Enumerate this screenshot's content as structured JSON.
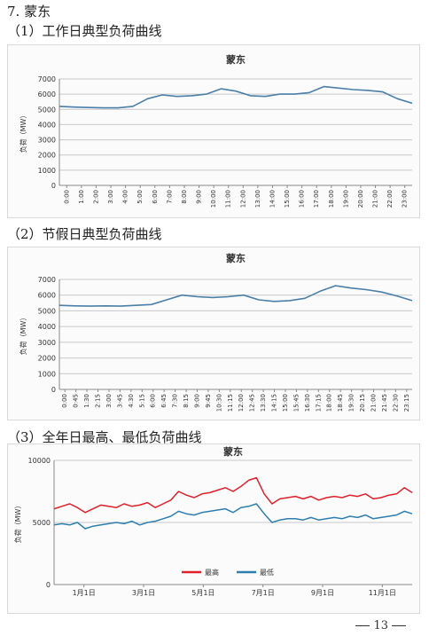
{
  "section": {
    "title": "7. 蒙东"
  },
  "subsections": [
    {
      "label": "（1）工作日典型负荷曲线"
    },
    {
      "label": "（2）节假日典型负荷曲线"
    },
    {
      "label": "（3）全年日最高、最低负荷曲线"
    }
  ],
  "page_number": "13",
  "chart_data": [
    {
      "type": "line",
      "title": "蒙东",
      "ylabel": "负荷（MW）",
      "ylim": [
        0,
        7000
      ],
      "yticks": [
        0,
        1000,
        2000,
        3000,
        4000,
        5000,
        6000,
        7000
      ],
      "grid": true,
      "x_labels": [
        "0:00",
        "1:00",
        "2:00",
        "3:00",
        "4:00",
        "5:00",
        "6:00",
        "7:00",
        "8:00",
        "9:00",
        "10:00",
        "11:00",
        "12:00",
        "13:00",
        "14:00",
        "15:00",
        "16:00",
        "17:00",
        "18:00",
        "19:00",
        "20:00",
        "21:00",
        "22:00",
        "23:00"
      ],
      "series": [
        {
          "values": [
            5200,
            5150,
            5120,
            5100,
            5100,
            5200,
            5700,
            5950,
            5850,
            5900,
            6000,
            6350,
            6200,
            5900,
            5850,
            6000,
            6000,
            6100,
            6500,
            6400,
            6300,
            6250,
            6150,
            5700,
            5400
          ],
          "color": "#4a7fa8"
        }
      ]
    },
    {
      "type": "line",
      "title": "蒙东",
      "ylabel": "负荷（MW）",
      "ylim": [
        0,
        7000
      ],
      "yticks": [
        0,
        1000,
        2000,
        3000,
        4000,
        5000,
        6000,
        7000
      ],
      "grid": true,
      "x_labels": [
        "0:00",
        "0:45",
        "1:30",
        "2:15",
        "3:00",
        "3:45",
        "4:30",
        "5:15",
        "6:00",
        "6:45",
        "7:30",
        "8:15",
        "9:00",
        "9:45",
        "10:30",
        "11:15",
        "12:00",
        "12:45",
        "13:30",
        "14:15",
        "15:00",
        "15:45",
        "16:30",
        "17:15",
        "18:00",
        "18:45",
        "19:30",
        "20:15",
        "21:00",
        "21:45",
        "22:30",
        "23:15"
      ],
      "series": [
        {
          "values": [
            5350,
            5320,
            5300,
            5320,
            5300,
            5350,
            5400,
            5700,
            6000,
            5900,
            5850,
            5900,
            6000,
            5700,
            5600,
            5650,
            5800,
            6250,
            6600,
            6450,
            6350,
            6200,
            5950,
            5650
          ],
          "color": "#4a7fa8"
        }
      ]
    },
    {
      "type": "line",
      "title": "蒙东",
      "ylabel": "负荷（MW）",
      "ylim": [
        0,
        10000
      ],
      "yticks": [
        0,
        5000,
        10000
      ],
      "grid": true,
      "x_labels": [
        "1月1日",
        "3月1日",
        "5月1日",
        "7月1日",
        "9月1日",
        "11月1日"
      ],
      "legend_position": "bottom",
      "series": [
        {
          "name": "最高",
          "color": "#e0202a",
          "values": [
            6100,
            6300,
            6500,
            6200,
            5800,
            6100,
            6400,
            6300,
            6200,
            6500,
            6300,
            6400,
            6600,
            6200,
            6500,
            6800,
            7500,
            7200,
            7000,
            7300,
            7400,
            7600,
            7800,
            7500,
            7900,
            8400,
            8600,
            7300,
            6500,
            6900,
            7000,
            7100,
            6900,
            7100,
            6800,
            7000,
            7100,
            7000,
            7200,
            7100,
            7300,
            6900,
            7000,
            7200,
            7300,
            7800,
            7400
          ]
        },
        {
          "name": "最低",
          "color": "#2e7fae",
          "values": [
            4800,
            4900,
            4800,
            5000,
            4500,
            4700,
            4800,
            4900,
            5000,
            4900,
            5100,
            4800,
            5000,
            5100,
            5300,
            5500,
            5900,
            5700,
            5600,
            5800,
            5900,
            6000,
            6100,
            5800,
            6200,
            6300,
            6500,
            5700,
            5000,
            5200,
            5300,
            5300,
            5200,
            5400,
            5200,
            5300,
            5400,
            5300,
            5500,
            5400,
            5600,
            5300,
            5400,
            5500,
            5600,
            5900,
            5700
          ]
        }
      ]
    }
  ]
}
